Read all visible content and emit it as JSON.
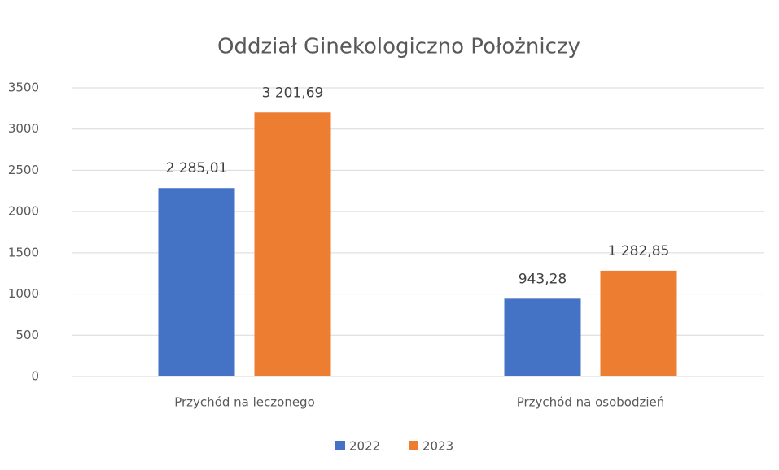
{
  "chart_data": {
    "type": "bar",
    "title": "Oddział Ginekologiczno Położniczy",
    "categories": [
      "Przychód na leczonego",
      "Przychód na osobodzień"
    ],
    "series": [
      {
        "name": "2022",
        "color": "#4472c4",
        "values": [
          2285.01,
          943.28
        ],
        "value_labels": [
          "2 285,01",
          "943,28"
        ]
      },
      {
        "name": "2023",
        "color": "#ed7d31",
        "values": [
          3201.69,
          1282.85
        ],
        "value_labels": [
          "3 201,69",
          "1 282,85"
        ]
      }
    ],
    "ylim": [
      0,
      3500
    ],
    "yticks": [
      0,
      500,
      1000,
      1500,
      2000,
      2500,
      3000,
      3500
    ],
    "grid": true,
    "legend": "bottom"
  }
}
